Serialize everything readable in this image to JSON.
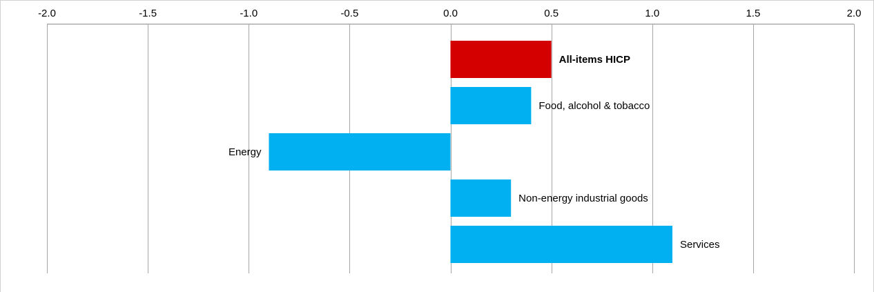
{
  "chart_data": {
    "type": "bar",
    "orientation": "horizontal",
    "title": "",
    "xlabel": "",
    "ylabel": "",
    "xlim": [
      -2.0,
      2.0
    ],
    "x_ticks": [
      "-2.0",
      "-1.5",
      "-1.0",
      "-0.5",
      "0.0",
      "0.5",
      "1.0",
      "1.5",
      "2.0"
    ],
    "tick_values": [
      -2.0,
      -1.5,
      -1.0,
      -0.5,
      0.0,
      0.5,
      1.0,
      1.5,
      2.0
    ],
    "x_axis_position": "top",
    "grid": "vertical",
    "legend": "none",
    "categories": [
      "All-items HICP",
      "Food, alcohol & tobacco",
      "Energy",
      "Non-energy industrial goods",
      "Services"
    ],
    "values": [
      0.5,
      0.4,
      -0.9,
      0.3,
      1.1
    ],
    "highlight": "All-items HICP",
    "colors": {
      "highlight_bar": "#d40000",
      "bar": "#00b0f0",
      "grid": "#a6a6a6",
      "axis": "#808080"
    }
  }
}
